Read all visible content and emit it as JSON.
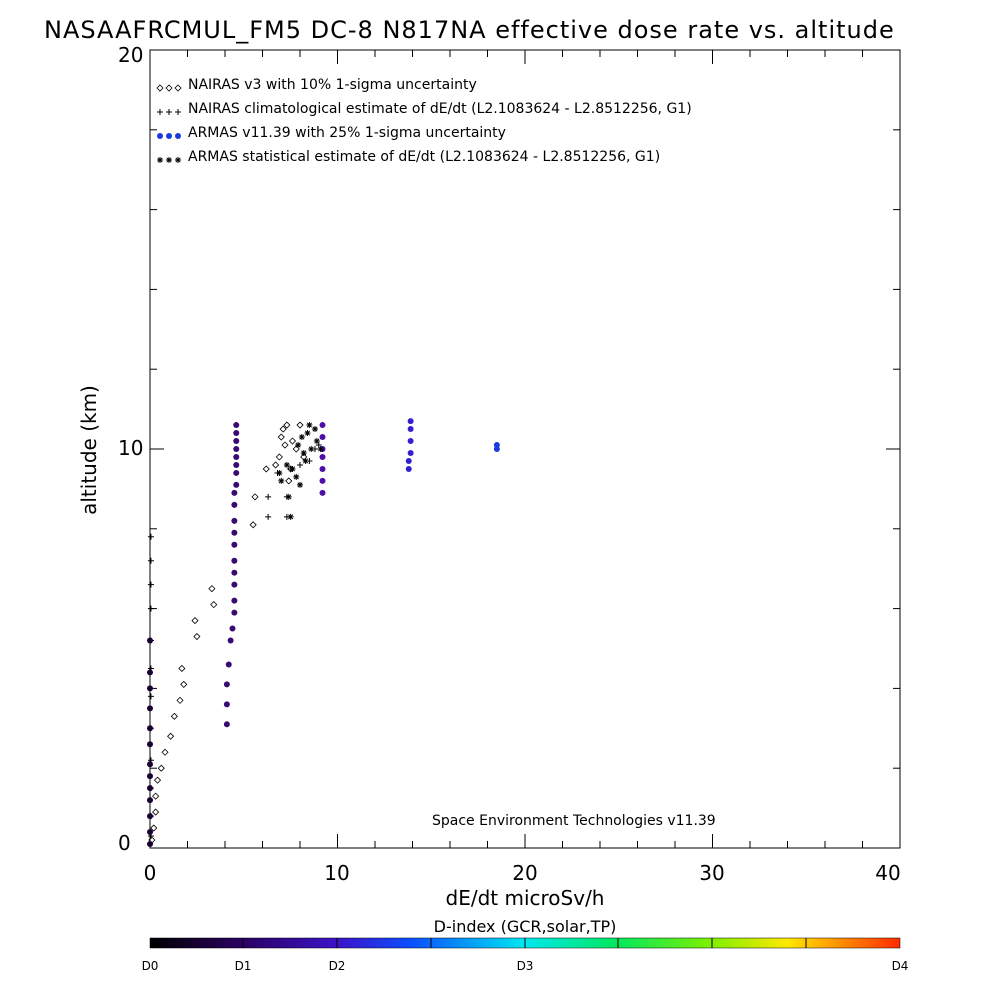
{
  "chart_data": {
    "type": "scatter",
    "title": "NASAAFRCMUL_FM5 DC-8   N817NA effective dose rate vs. altitude",
    "xlabel": "dE/dt microSv/h",
    "ylabel": "altitude (km)",
    "xlim": [
      0,
      40
    ],
    "ylim": [
      0,
      20
    ],
    "x_ticks": [
      "0",
      "10",
      "20",
      "30",
      "40"
    ],
    "y_ticks": [
      "0",
      "10",
      "20"
    ],
    "legend_placement": "top-left",
    "credit": "Space Environment Technologies v11.39",
    "series": [
      {
        "name": "NAIRAS v3 with 10% 1-sigma uncertainty",
        "marker": "diamond",
        "color": "#000000",
        "points": [
          [
            0.1,
            0.2
          ],
          [
            0.2,
            0.5
          ],
          [
            0.3,
            0.9
          ],
          [
            0.3,
            1.3
          ],
          [
            0.4,
            1.7
          ],
          [
            0.6,
            2.0
          ],
          [
            0.8,
            2.4
          ],
          [
            1.1,
            2.8
          ],
          [
            1.3,
            3.3
          ],
          [
            1.6,
            3.7
          ],
          [
            1.8,
            4.1
          ],
          [
            1.7,
            4.5
          ],
          [
            2.5,
            5.3
          ],
          [
            2.4,
            5.7
          ],
          [
            3.4,
            6.1
          ],
          [
            3.3,
            6.5
          ],
          [
            5.5,
            8.1
          ],
          [
            5.6,
            8.8
          ],
          [
            6.2,
            9.5
          ],
          [
            6.7,
            9.6
          ],
          [
            6.9,
            9.8
          ],
          [
            7.2,
            10.1
          ],
          [
            7.0,
            10.3
          ],
          [
            7.1,
            10.5
          ],
          [
            7.3,
            10.6
          ],
          [
            7.6,
            10.2
          ],
          [
            8.0,
            10.6
          ],
          [
            7.8,
            10.0
          ],
          [
            8.2,
            9.8
          ],
          [
            7.5,
            9.5
          ],
          [
            7.4,
            9.2
          ]
        ]
      },
      {
        "name": "NAIRAS climatological estimate of dE/dt (L2.1083624 - L2.8512256, G1)",
        "marker": "plus",
        "color": "#000000",
        "points": [
          [
            0.05,
            0.3
          ],
          [
            0.05,
            0.8
          ],
          [
            0.05,
            1.5
          ],
          [
            0.05,
            2.2
          ],
          [
            0.05,
            3.0
          ],
          [
            0.05,
            3.8
          ],
          [
            0.05,
            4.5
          ],
          [
            0.05,
            5.2
          ],
          [
            0.05,
            6.0
          ],
          [
            0.05,
            6.6
          ],
          [
            0.05,
            7.2
          ],
          [
            0.05,
            7.8
          ],
          [
            6.3,
            8.3
          ],
          [
            6.3,
            8.8
          ],
          [
            7.3,
            8.3
          ],
          [
            7.3,
            8.8
          ],
          [
            6.8,
            9.4
          ],
          [
            7.5,
            9.5
          ],
          [
            8.0,
            9.6
          ],
          [
            8.5,
            9.7
          ],
          [
            8.8,
            10.0
          ],
          [
            9.0,
            10.1
          ]
        ]
      },
      {
        "name": "ARMAS v11.39 with 25% 1-sigma uncertainty",
        "marker": "dot",
        "color": "#1a3ae0",
        "points": [
          [
            0.0,
            0.1
          ],
          [
            0.0,
            0.4
          ],
          [
            0.0,
            0.8
          ],
          [
            0.0,
            1.2
          ],
          [
            0.0,
            1.5
          ],
          [
            0.0,
            1.8
          ],
          [
            0.0,
            2.1
          ],
          [
            0.0,
            2.6
          ],
          [
            0.0,
            3.0
          ],
          [
            0.0,
            3.5
          ],
          [
            0.0,
            4.0
          ],
          [
            0.0,
            4.4
          ],
          [
            0.0,
            5.2
          ],
          [
            4.1,
            3.1
          ],
          [
            4.1,
            3.6
          ],
          [
            4.1,
            4.1
          ],
          [
            4.2,
            4.6
          ],
          [
            4.3,
            5.2
          ],
          [
            4.4,
            5.5
          ],
          [
            4.5,
            5.9
          ],
          [
            4.5,
            6.2
          ],
          [
            4.5,
            6.6
          ],
          [
            4.5,
            6.9
          ],
          [
            4.5,
            7.2
          ],
          [
            4.5,
            7.6
          ],
          [
            4.5,
            7.9
          ],
          [
            4.5,
            8.2
          ],
          [
            4.5,
            8.6
          ],
          [
            4.5,
            8.9
          ],
          [
            4.6,
            9.1
          ],
          [
            4.6,
            9.4
          ],
          [
            4.6,
            9.6
          ],
          [
            4.6,
            9.8
          ],
          [
            4.6,
            10.0
          ],
          [
            4.6,
            10.2
          ],
          [
            4.6,
            10.4
          ],
          [
            4.6,
            10.6
          ],
          [
            9.2,
            8.9
          ],
          [
            9.2,
            9.2
          ],
          [
            9.2,
            9.5
          ],
          [
            9.2,
            9.8
          ],
          [
            9.2,
            10.0
          ],
          [
            9.2,
            10.3
          ],
          [
            9.2,
            10.6
          ],
          [
            13.8,
            9.5
          ],
          [
            13.8,
            9.7
          ],
          [
            13.9,
            9.9
          ],
          [
            13.9,
            10.2
          ],
          [
            13.9,
            10.5
          ],
          [
            13.9,
            10.7
          ],
          [
            18.5,
            10.0
          ],
          [
            18.5,
            10.1
          ]
        ]
      },
      {
        "name": "ARMAS statistical estimate of dE/dt (L2.1083624 - L2.8512256, G1)",
        "marker": "asterisk",
        "color": "#000000",
        "points": [
          [
            7.5,
            8.3
          ],
          [
            7.4,
            8.8
          ],
          [
            6.9,
            9.4
          ],
          [
            7.0,
            9.2
          ],
          [
            7.3,
            9.6
          ],
          [
            7.6,
            9.5
          ],
          [
            7.8,
            9.3
          ],
          [
            8.0,
            9.1
          ],
          [
            8.3,
            9.7
          ],
          [
            7.9,
            10.1
          ],
          [
            8.1,
            10.3
          ],
          [
            8.4,
            10.4
          ],
          [
            8.5,
            10.6
          ],
          [
            8.8,
            10.5
          ],
          [
            8.9,
            10.2
          ],
          [
            9.1,
            10.0
          ],
          [
            8.2,
            9.9
          ],
          [
            8.6,
            10.0
          ]
        ]
      }
    ],
    "colorbar": {
      "title": "D-index (GCR,solar,TP)",
      "labels": [
        "D0",
        "D1",
        "D2",
        "D3",
        "D4"
      ]
    }
  }
}
